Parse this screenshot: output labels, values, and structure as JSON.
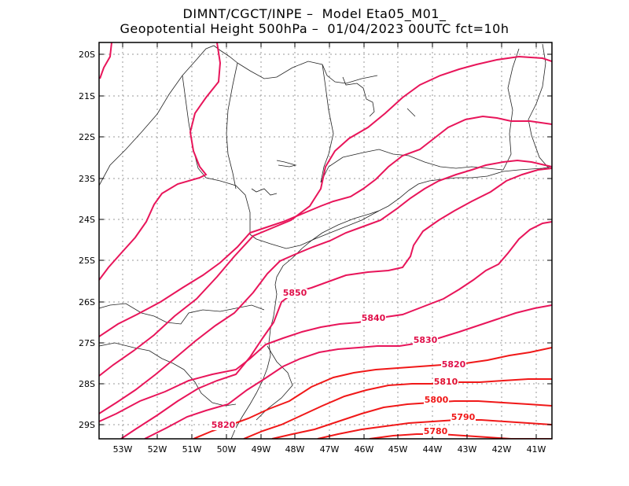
{
  "title": {
    "line1": "DIMNT/CGCT/INPE –  Model Eta05_M01_",
    "line2": "Geopotential Height 500hPa –  01/04/2023 00UTC fct=10h"
  },
  "axes": {
    "lat_labels": [
      "20S",
      "21S",
      "22S",
      "23S",
      "24S",
      "25S",
      "26S",
      "27S",
      "28S",
      "29S"
    ],
    "lon_labels": [
      "53W",
      "52W",
      "51W",
      "50W",
      "49W",
      "48W",
      "47W",
      "46W",
      "45W",
      "44W",
      "43W",
      "42W",
      "41W"
    ]
  },
  "contour_labels": [
    {
      "text": "5850",
      "color": "#e0104a"
    },
    {
      "text": "5840",
      "color": "#e0104a"
    },
    {
      "text": "5830",
      "color": "#e0104a"
    },
    {
      "text": "5820",
      "color": "#e0104a"
    },
    {
      "text": "5810",
      "color": "#e01030"
    },
    {
      "text": "5800",
      "color": "#f01818"
    },
    {
      "text": "5790",
      "color": "#f01818"
    },
    {
      "text": "5780",
      "color": "#f01818"
    },
    {
      "text": "5820",
      "color": "#e0104a"
    }
  ],
  "colors": {
    "contour_magenta": "#e8155a",
    "contour_red": "#f01818",
    "coastline": "#222222",
    "grid": "#9a9a9a"
  }
}
